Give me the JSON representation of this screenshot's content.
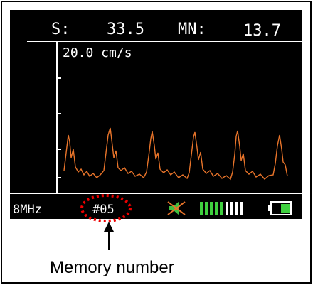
{
  "header": {
    "s_label": "S:",
    "s_value": "33.5",
    "mn_label": "MN:",
    "mn_value": "13.7"
  },
  "scale": "20.0 cm/s",
  "status": {
    "frequency": "8MHz",
    "memory": "#05"
  },
  "annotation": "Memory number"
}
